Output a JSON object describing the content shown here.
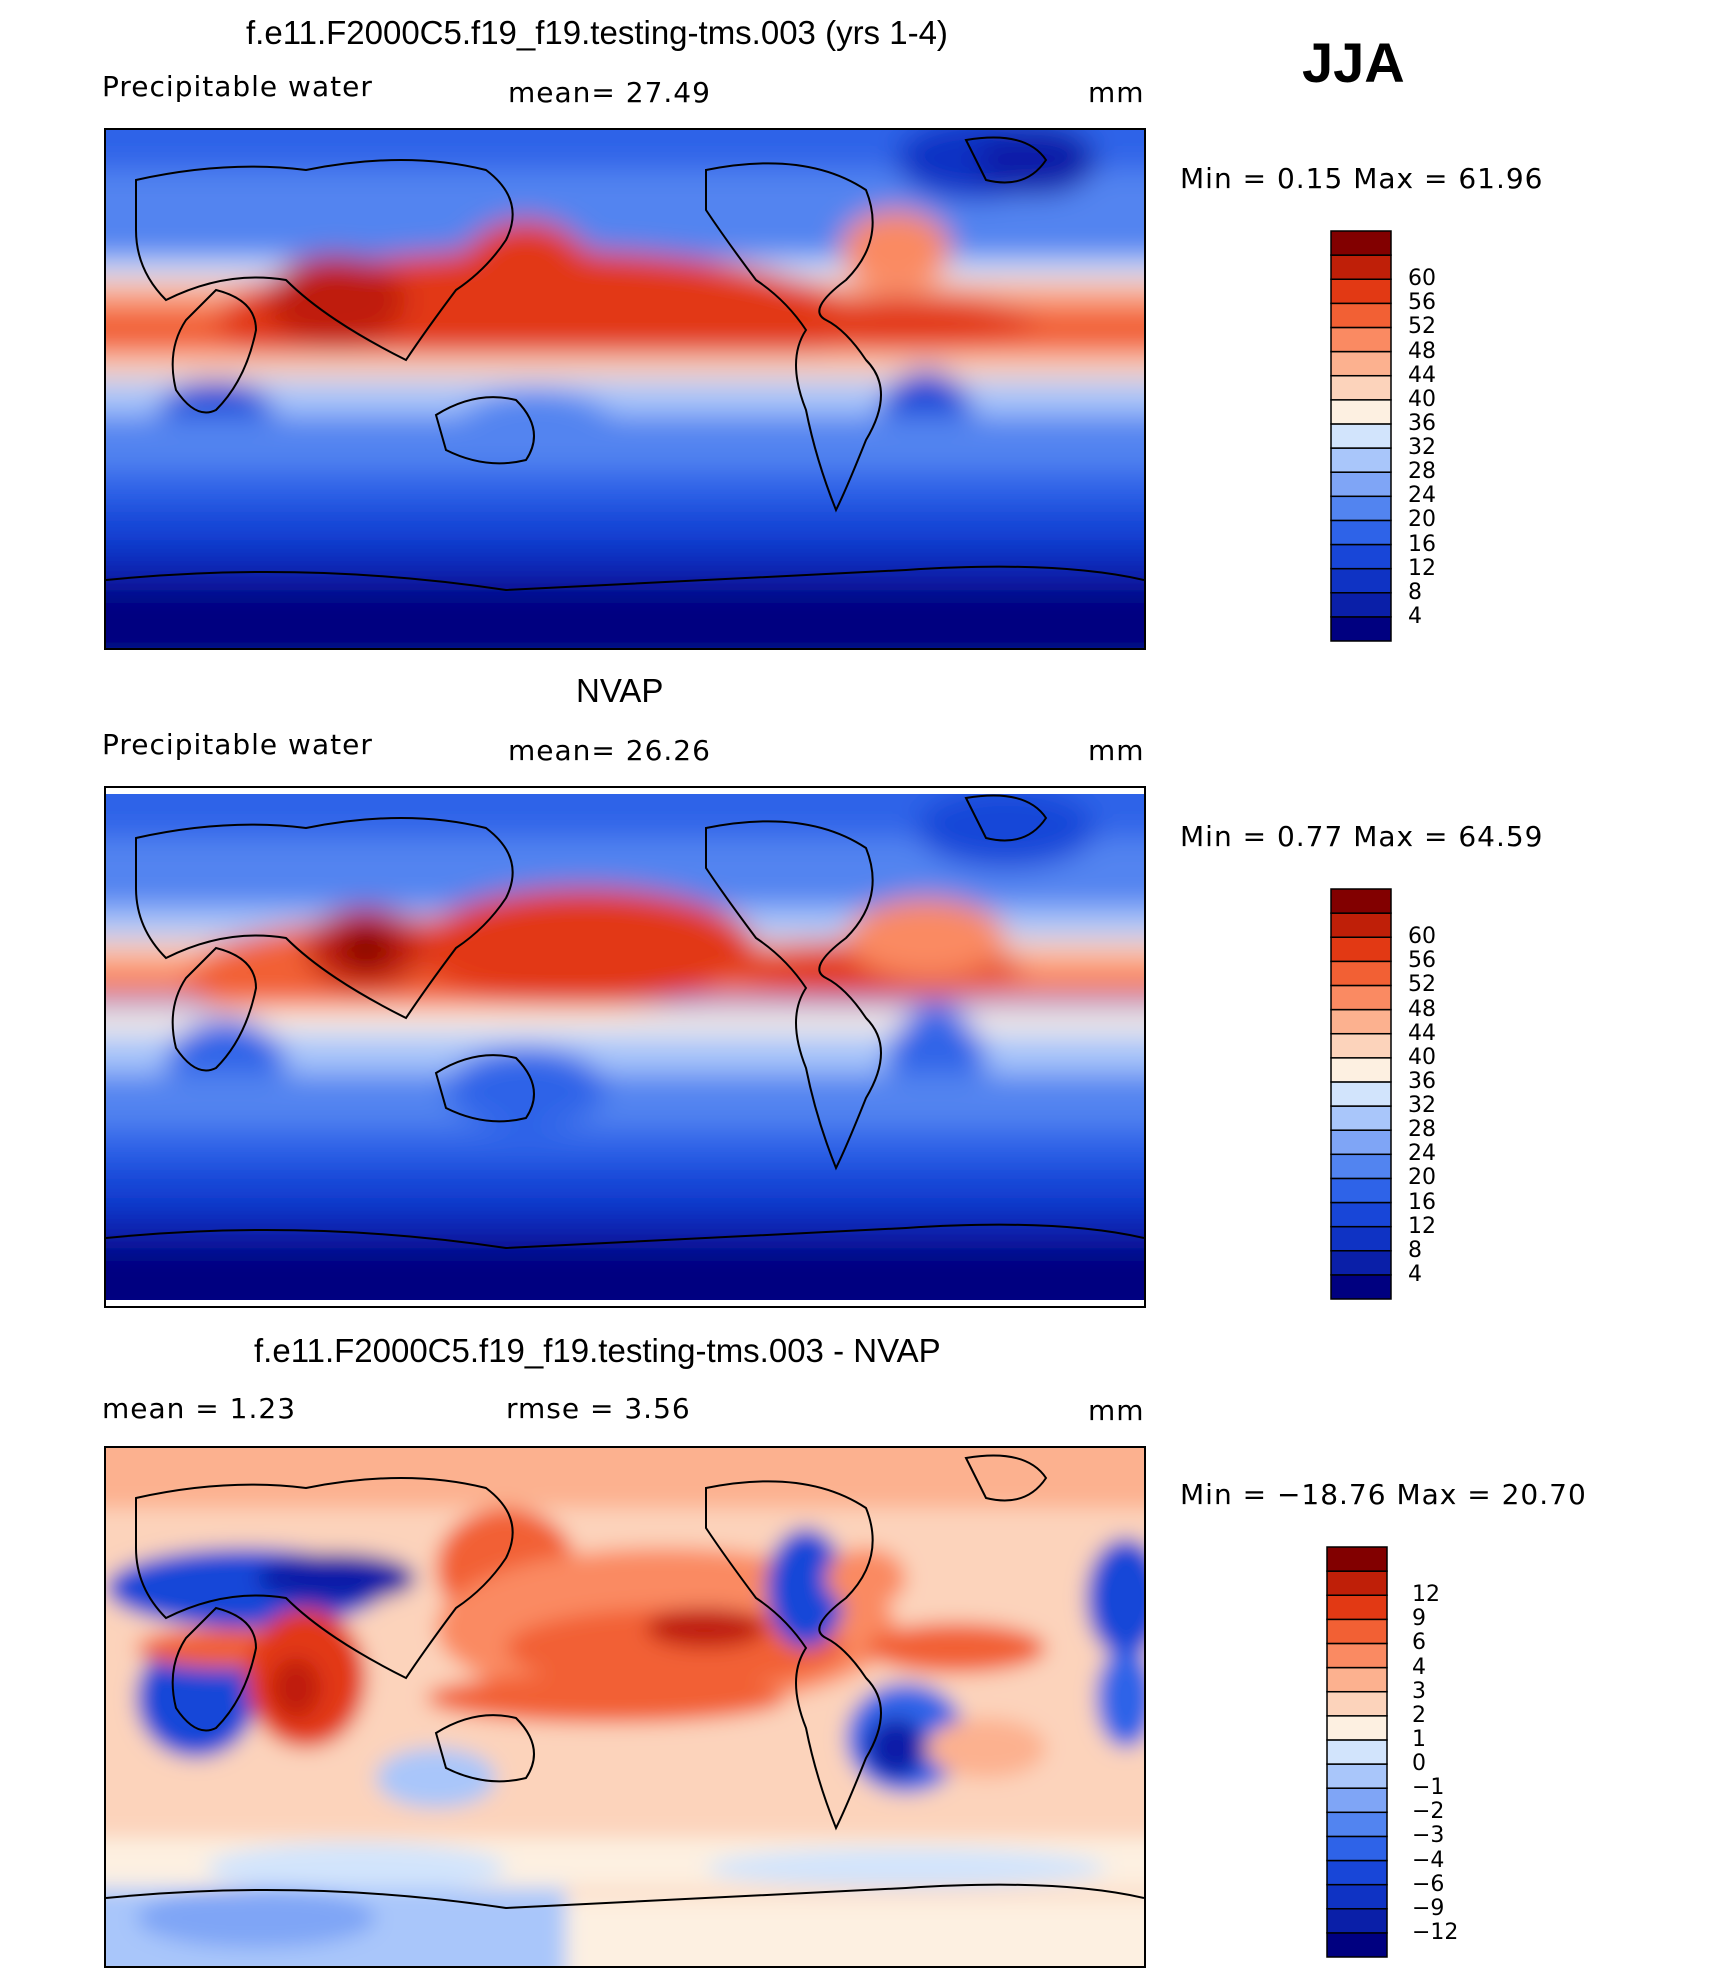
{
  "season": "JJA",
  "panels": [
    {
      "id": "model",
      "title": "f.e11.F2000C5.f19_f19.testing-tms.003 (yrs 1-4)",
      "left_label": "Precipitable  water",
      "mid_label": "mean=   27.49",
      "right_label": "mm",
      "minmax": "Min  =    0.15  Max  =    61.96",
      "colorbar": {
        "colors": [
          "#000080",
          "#0a1fa8",
          "#0f33c4",
          "#1846d8",
          "#2e63e8",
          "#5284f0",
          "#7fa5f6",
          "#a9c6fa",
          "#d2e4fc",
          "#fdf0e1",
          "#fcd3bb",
          "#fcb18f",
          "#fa8a62",
          "#f26034",
          "#e23914",
          "#bf1f08",
          "#820000"
        ],
        "labels": [
          "4",
          "8",
          "12",
          "16",
          "20",
          "24",
          "28",
          "32",
          "36",
          "40",
          "44",
          "48",
          "52",
          "56",
          "60"
        ]
      }
    },
    {
      "id": "obs",
      "title": "NVAP",
      "left_label": "Precipitable  water",
      "mid_label": "mean=   26.26",
      "right_label": "mm",
      "minmax": "Min  =    0.77  Max  =    64.59",
      "colorbar": {
        "colors": [
          "#000080",
          "#0a1fa8",
          "#0f33c4",
          "#1846d8",
          "#2e63e8",
          "#5284f0",
          "#7fa5f6",
          "#a9c6fa",
          "#d2e4fc",
          "#fdf0e1",
          "#fcd3bb",
          "#fcb18f",
          "#fa8a62",
          "#f26034",
          "#e23914",
          "#bf1f08",
          "#820000"
        ],
        "labels": [
          "4",
          "8",
          "12",
          "16",
          "20",
          "24",
          "28",
          "32",
          "36",
          "40",
          "44",
          "48",
          "52",
          "56",
          "60"
        ]
      }
    },
    {
      "id": "diff",
      "title": "f.e11.F2000C5.f19_f19.testing-tms.003 - NVAP",
      "left_label": "mean  =     1.23",
      "mid_label": "rmse  =     3.56",
      "right_label": "mm",
      "minmax": "Min  = −18.76  Max  =    20.70",
      "colorbar": {
        "colors": [
          "#000080",
          "#0a1fa8",
          "#0f33c4",
          "#1846d8",
          "#2e63e8",
          "#5284f0",
          "#7fa5f6",
          "#a9c6fa",
          "#d2e4fc",
          "#fdf0e1",
          "#fcd3bb",
          "#fcb18f",
          "#fa8a62",
          "#f26034",
          "#e23914",
          "#bf1f08",
          "#820000"
        ],
        "labels": [
          "−12",
          "−9",
          "−6",
          "−4",
          "−3",
          "−2",
          "−1",
          "0",
          "1",
          "2",
          "3",
          "4",
          "6",
          "9",
          "12"
        ]
      }
    }
  ]
}
